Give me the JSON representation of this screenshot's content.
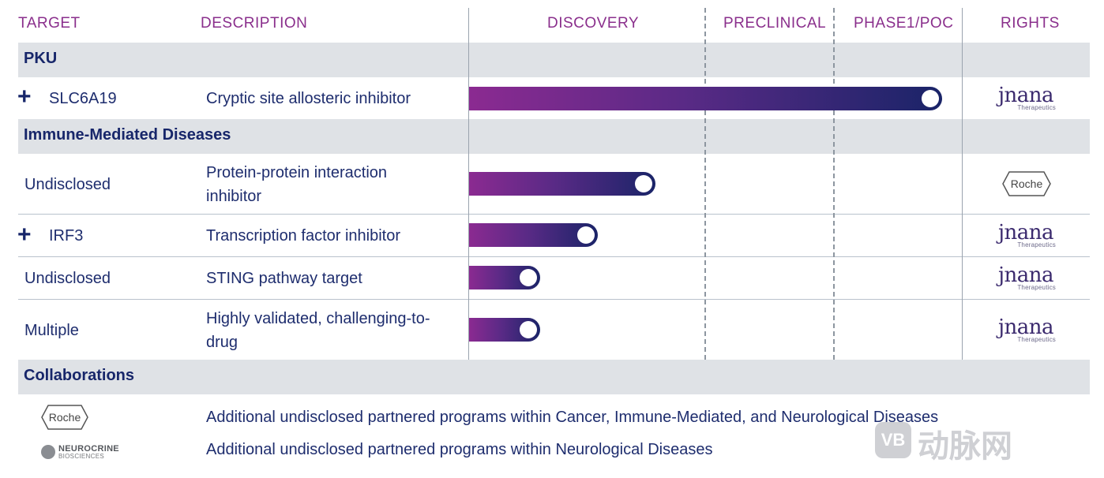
{
  "headers": {
    "target": "TARGET",
    "description": "DESCRIPTION",
    "discovery": "DISCOVERY",
    "preclinical": "PRECLINICAL",
    "phase1": "PHASE1/POC",
    "rights": "RIGHTS"
  },
  "sections": {
    "pku": "PKU",
    "immune": "Immune-Mediated Diseases",
    "collab": "Collaborations"
  },
  "rows": [
    {
      "target": "SLC6A19",
      "description": "Cryptic site allosteric inhibitor",
      "progress": 0.959,
      "rights": "jnana"
    },
    {
      "target": "Undisclosed",
      "description": "Protein-protein interaction inhibitor",
      "progress": 0.378,
      "rights": "Roche"
    },
    {
      "target": "IRF3",
      "description": "Transcription factor inhibitor",
      "progress": 0.261,
      "rights": "jnana"
    },
    {
      "target": "Undisclosed",
      "description": "STING pathway target",
      "progress": 0.144,
      "rights": "jnana"
    },
    {
      "target": "Multiple",
      "description": "Highly validated, challenging-to-drug",
      "progress": 0.144,
      "rights": "jnana"
    }
  ],
  "logos": {
    "jnana": "jnana",
    "jnana_sub": "Therapeutics",
    "roche": "Roche",
    "neurocrine_main": "NEUROCRINE",
    "neurocrine_sub": "BIOSCIENCES"
  },
  "collaborations": [
    {
      "partner": "Roche",
      "text": "Additional undisclosed partnered programs within Cancer, Immune-Mediated, and Neurological Diseases"
    },
    {
      "partner": "NEUROCRINE",
      "text": "Additional undisclosed partnered programs within Neurological Diseases"
    }
  ],
  "watermark": "动脉网",
  "colors": {
    "header": "#8a2f8c",
    "navy": "#17266a",
    "band": "#dfe2e6",
    "bar_start": "#8b2a91",
    "bar_end": "#1a2468"
  }
}
